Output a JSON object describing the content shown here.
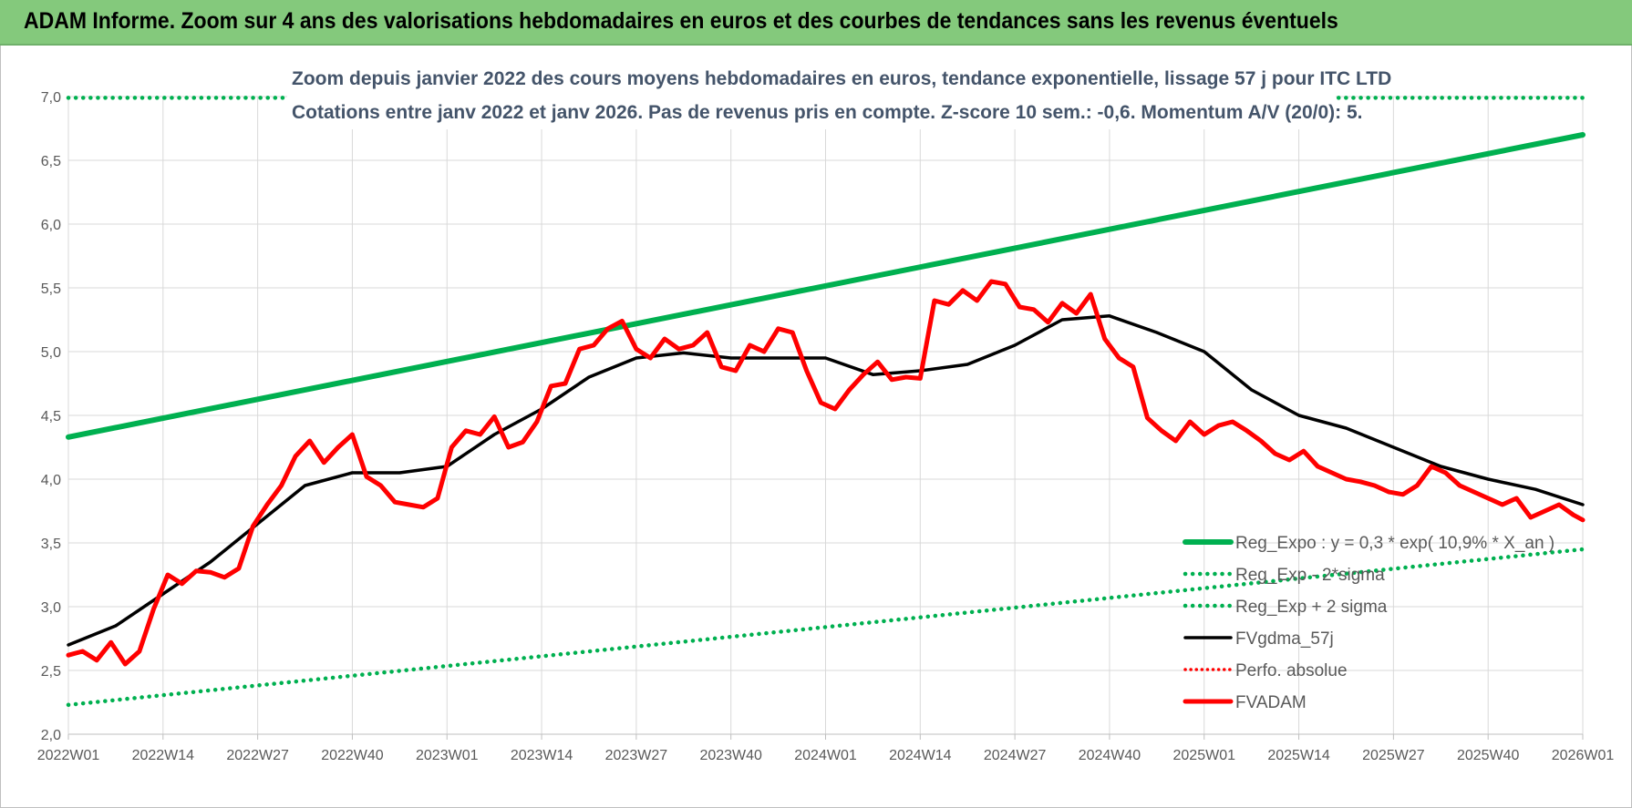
{
  "banner": {
    "title": "ADAM Informe. Zoom sur 4 ans des valorisations hebdomadaires en euros et des courbes de tendances sans les revenus éventuels"
  },
  "chart_data": {
    "type": "line",
    "title": "",
    "subtitle_lines": [
      "Zoom depuis janvier 2022 des cours moyens hebdomadaires en euros, tendance exponentielle, lissage 57 j pour ITC LTD",
      "Cotations entre janv 2022 et janv 2026. Pas de revenus pris en compte. Z-score 10 sem.: -0,6. Momentum A/V (20/0): 5."
    ],
    "xlabel": "",
    "ylabel": "",
    "ylim": [
      2.0,
      7.0
    ],
    "yticks": [
      "2,0",
      "2,5",
      "3,0",
      "3,5",
      "4,0",
      "4,5",
      "5,0",
      "5,5",
      "6,0",
      "6,5",
      "7,0"
    ],
    "x_categories": [
      "2022W01",
      "2022W14",
      "2022W27",
      "2022W40",
      "2023W01",
      "2023W14",
      "2023W27",
      "2023W40",
      "2024W01",
      "2024W14",
      "2024W27",
      "2024W40",
      "2025W01",
      "2025W14",
      "2025W27",
      "2025W40",
      "2026W01"
    ],
    "grid": true,
    "legend_placement": "bottom-right",
    "colors": {
      "reg_expo": "#00b050",
      "reg_band": "#00b050",
      "fvgdma": "#000000",
      "perfo": "#ff0000",
      "fvadam": "#ff0000"
    },
    "series": [
      {
        "name": "Reg_Expo : y = 0,3 * exp( 10,9% *  X_an )",
        "style": "solid-thick",
        "x_index": [
          0,
          16
        ],
        "values": [
          4.33,
          6.7
        ]
      },
      {
        "name": "Reg_Exp - 2*sigma",
        "style": "dotted",
        "x_index": [
          0,
          16
        ],
        "values": [
          2.23,
          3.45
        ]
      },
      {
        "name": "Reg_Exp + 2 sigma",
        "style": "dotted",
        "x_index": [
          0,
          16
        ],
        "values": [
          6.99,
          6.99
        ]
      },
      {
        "name": "FVgdma_57j",
        "style": "solid",
        "x_index": [
          0,
          0.5,
          1,
          1.5,
          2,
          2.5,
          3,
          3.5,
          4,
          4.5,
          5,
          5.5,
          6,
          6.5,
          7,
          7.5,
          8,
          8.5,
          9,
          9.5,
          10,
          10.5,
          11,
          11.5,
          12,
          12.5,
          13,
          13.5,
          14,
          14.5,
          15,
          15.5,
          16
        ],
        "values": [
          2.7,
          2.85,
          3.1,
          3.35,
          3.65,
          3.95,
          4.05,
          4.05,
          4.1,
          4.35,
          4.55,
          4.8,
          4.95,
          4.99,
          4.95,
          4.95,
          4.95,
          4.82,
          4.85,
          4.9,
          5.05,
          5.25,
          5.28,
          5.15,
          5.0,
          4.7,
          4.5,
          4.4,
          4.25,
          4.1,
          4.0,
          3.92,
          3.8
        ]
      },
      {
        "name": "Perfo. absolue",
        "style": "dotted",
        "x_index": [],
        "values": []
      },
      {
        "name": "FVADAM",
        "style": "solid-thick",
        "x_index": [
          0,
          0.15,
          0.3,
          0.45,
          0.6,
          0.75,
          0.9,
          1.05,
          1.2,
          1.35,
          1.5,
          1.65,
          1.8,
          1.95,
          2.1,
          2.25,
          2.4,
          2.55,
          2.7,
          2.85,
          3.0,
          3.15,
          3.3,
          3.45,
          3.6,
          3.75,
          3.9,
          4.05,
          4.2,
          4.35,
          4.5,
          4.65,
          4.8,
          4.95,
          5.1,
          5.25,
          5.4,
          5.55,
          5.7,
          5.85,
          6.0,
          6.15,
          6.3,
          6.45,
          6.6,
          6.75,
          6.9,
          7.05,
          7.2,
          7.35,
          7.5,
          7.65,
          7.8,
          7.95,
          8.1,
          8.25,
          8.4,
          8.55,
          8.7,
          8.85,
          9.0,
          9.15,
          9.3,
          9.45,
          9.6,
          9.75,
          9.9,
          10.05,
          10.2,
          10.35,
          10.5,
          10.65,
          10.8,
          10.95,
          11.1,
          11.25,
          11.4,
          11.55,
          11.7,
          11.85,
          12.0,
          12.15,
          12.3,
          12.45,
          12.6,
          12.75,
          12.9,
          13.05,
          13.2,
          13.35,
          13.5,
          13.65,
          13.8,
          13.95,
          14.1,
          14.25,
          14.4,
          14.55,
          14.7,
          14.85,
          15.0,
          15.15,
          15.3,
          15.45,
          15.6,
          15.75,
          15.9,
          16.0
        ],
        "values": [
          2.62,
          2.65,
          2.58,
          2.72,
          2.55,
          2.65,
          2.98,
          3.25,
          3.18,
          3.28,
          3.27,
          3.23,
          3.3,
          3.63,
          3.8,
          3.95,
          4.18,
          4.3,
          4.13,
          4.25,
          4.35,
          4.02,
          3.95,
          3.82,
          3.8,
          3.78,
          3.85,
          4.25,
          4.38,
          4.35,
          4.49,
          4.25,
          4.29,
          4.45,
          4.73,
          4.75,
          5.02,
          5.05,
          5.18,
          5.24,
          5.02,
          4.95,
          5.1,
          5.02,
          5.05,
          5.15,
          4.88,
          4.85,
          5.05,
          5.0,
          5.18,
          5.15,
          4.85,
          4.6,
          4.55,
          4.7,
          4.82,
          4.92,
          4.78,
          4.8,
          4.79,
          5.4,
          5.37,
          5.48,
          5.4,
          5.55,
          5.53,
          5.35,
          5.33,
          5.23,
          5.38,
          5.3,
          5.45,
          5.1,
          4.95,
          4.88,
          4.48,
          4.38,
          4.3,
          4.45,
          4.35,
          4.42,
          4.45,
          4.38,
          4.3,
          4.2,
          4.15,
          4.22,
          4.1,
          4.05,
          4.0,
          3.98,
          3.95,
          3.9,
          3.88,
          3.95,
          4.1,
          4.05,
          3.95,
          3.9,
          3.85,
          3.8,
          3.85,
          3.7,
          3.75,
          3.8,
          3.72,
          3.68
        ]
      }
    ]
  }
}
